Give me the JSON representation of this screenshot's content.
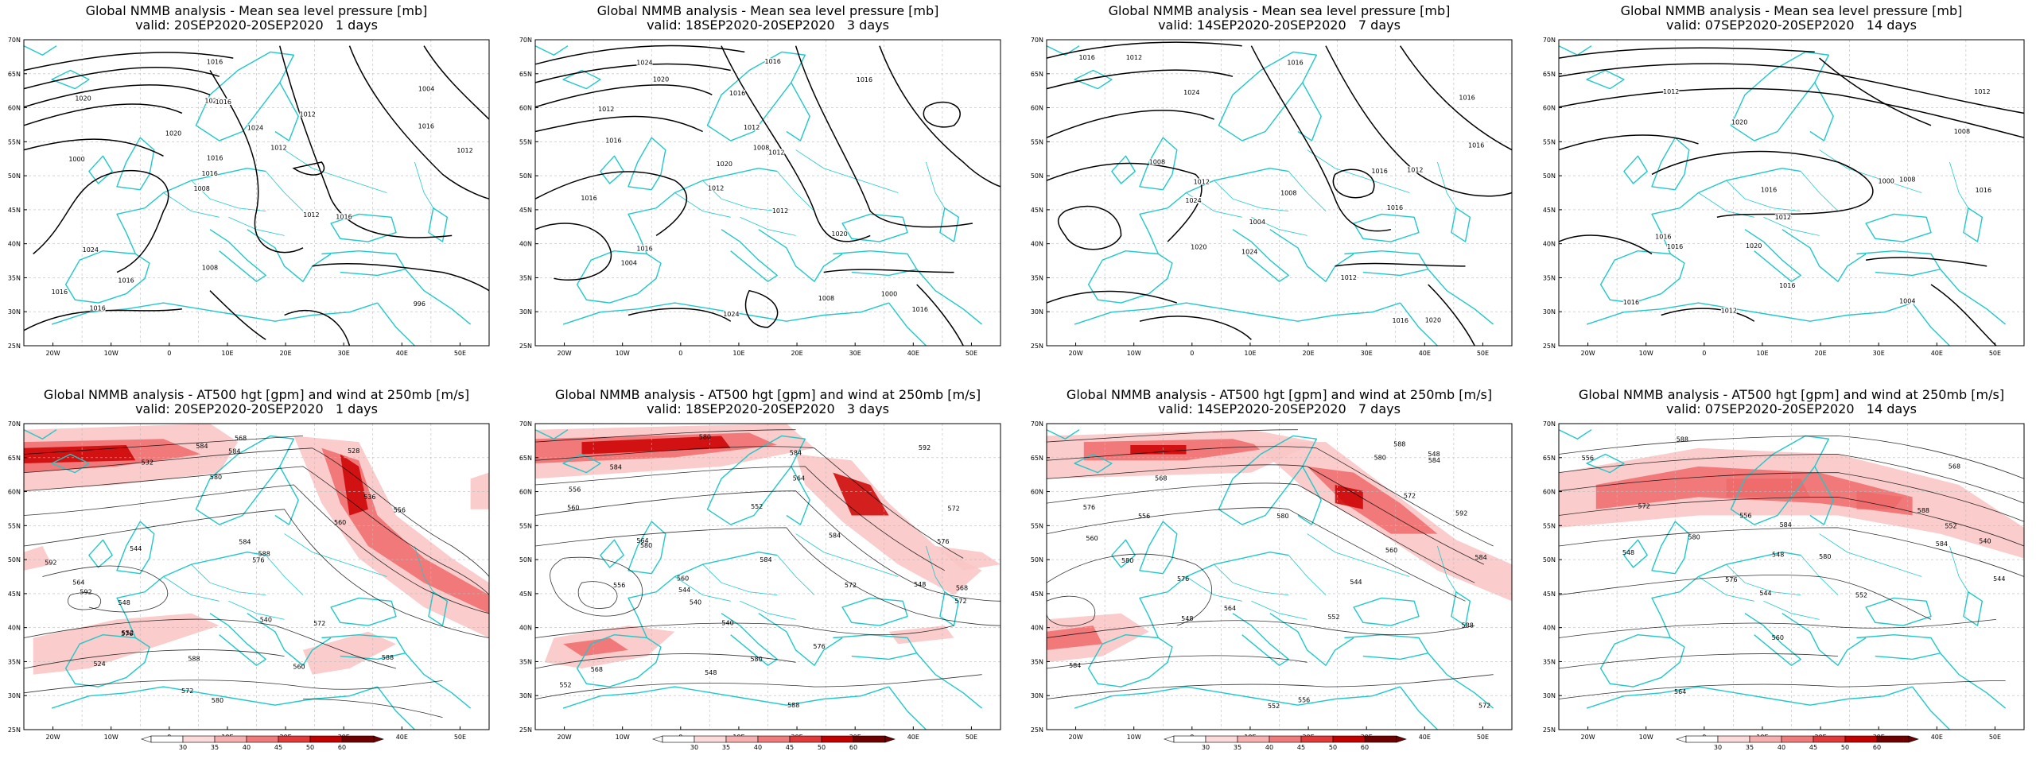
{
  "mslp_title": "Global NMMB analysis - Mean sea level pressure [mb]",
  "wind_title": "Global NMMB analysis - AT500 hgt [gpm] and wind at 250mb [m/s]",
  "valid": [
    "valid: 20SEP2020-20SEP2020   1 days",
    "valid: 18SEP2020-20SEP2020   3 days",
    "valid: 14SEP2020-20SEP2020   7 days",
    "valid: 07SEP2020-20SEP2020   14 days"
  ],
  "lat_labels": [
    "70N",
    "65N",
    "60N",
    "55N",
    "50N",
    "45N",
    "40N",
    "35N",
    "30N",
    "25N"
  ],
  "lon_labels": [
    "20W",
    "10W",
    "0",
    "10E",
    "20E",
    "30E",
    "40E",
    "50E"
  ],
  "colorbar_ticks": [
    "30",
    "35",
    "40",
    "45",
    "50",
    "60"
  ],
  "colors": {
    "coast": "#21c8c8",
    "contour": "#000000",
    "wind_low": "#f9c7c7",
    "wind_high": "#cc0000"
  },
  "mslp_panels": [
    {
      "labels": [
        "996",
        "1000",
        "1004",
        "1008",
        "1012",
        "1016",
        "1020",
        "1024",
        "1024",
        "1020",
        "1016",
        "1016",
        "1016",
        "1012",
        "1016",
        "1020",
        "1016",
        "1012",
        "1012",
        "1016",
        "1016",
        "1008",
        "1016"
      ]
    },
    {
      "labels": [
        "1004",
        "1008",
        "1012",
        "1016",
        "1020",
        "1024",
        "1024",
        "1020",
        "1016",
        "1012",
        "1016",
        "1016",
        "1016",
        "1020",
        "1016",
        "1012",
        "1012",
        "1008",
        "1000",
        "1016",
        "1012"
      ]
    },
    {
      "labels": [
        "1004",
        "1008",
        "1012",
        "1016",
        "1020",
        "1024",
        "1024",
        "1024",
        "1020",
        "1016",
        "1012",
        "1016",
        "1016",
        "1016",
        "1012",
        "1012",
        "1008",
        "1016",
        "1016"
      ]
    },
    {
      "labels": [
        "1000",
        "1004",
        "1008",
        "1012",
        "1016",
        "1020",
        "1016",
        "1016",
        "1020",
        "1016",
        "1016",
        "1012",
        "1012",
        "1008",
        "1016",
        "1012"
      ]
    }
  ],
  "wind_panels": [
    {
      "labels": [
        "524",
        "528",
        "532",
        "536",
        "540",
        "544",
        "548",
        "552",
        "556",
        "560",
        "564",
        "568",
        "572",
        "576",
        "580",
        "584",
        "588",
        "592",
        "576",
        "572",
        "560",
        "584",
        "580",
        "588",
        "584",
        "588",
        "592"
      ]
    },
    {
      "labels": [
        "540",
        "544",
        "548",
        "552",
        "556",
        "560",
        "564",
        "568",
        "572",
        "576",
        "580",
        "584",
        "572",
        "576",
        "580",
        "584",
        "592",
        "584",
        "580",
        "588",
        "540",
        "548",
        "552",
        "556",
        "560",
        "564",
        "568",
        "572",
        "584"
      ]
    },
    {
      "labels": [
        "544",
        "548",
        "552",
        "556",
        "560",
        "564",
        "568",
        "572",
        "576",
        "580",
        "584",
        "572",
        "576",
        "580",
        "584",
        "588",
        "592",
        "584",
        "580",
        "588",
        "560",
        "548",
        "552",
        "556"
      ]
    },
    {
      "labels": [
        "540",
        "544",
        "548",
        "552",
        "556",
        "560",
        "564",
        "568",
        "572",
        "576",
        "580",
        "584",
        "580",
        "584",
        "588",
        "588",
        "544",
        "548",
        "552",
        "556"
      ]
    }
  ]
}
